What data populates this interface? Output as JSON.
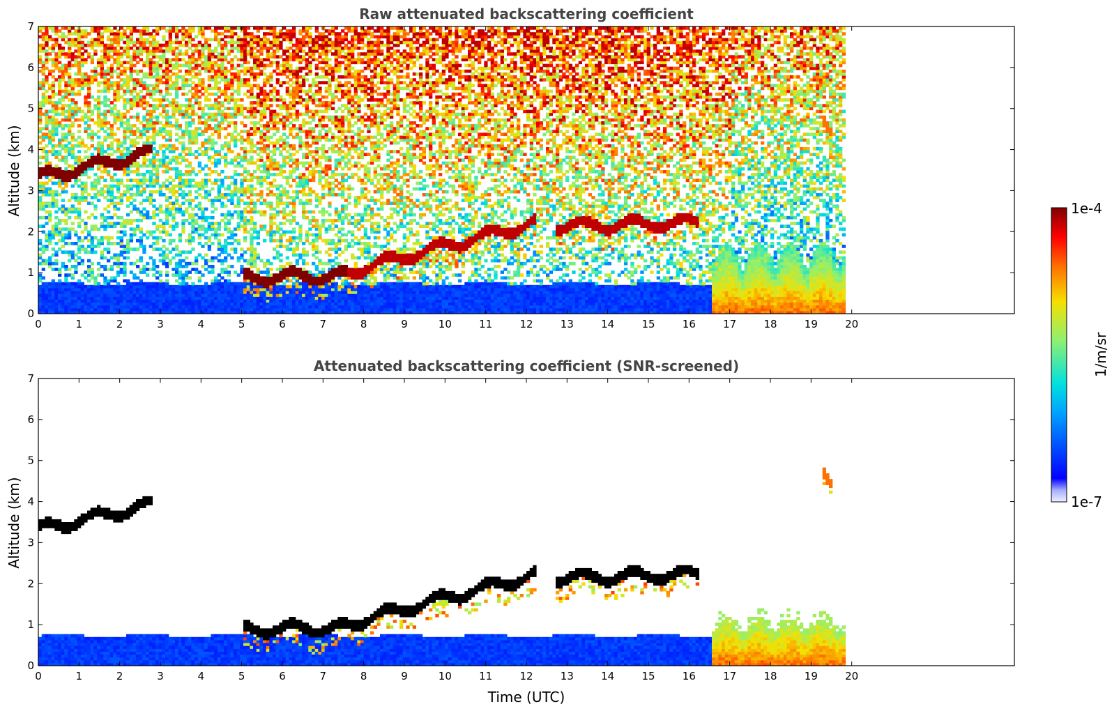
{
  "chart_data": [
    {
      "type": "heatmap",
      "title": "Raw attenuated backscattering coefficient",
      "xlabel": "",
      "ylabel": "Altitude (km)",
      "xlim": [
        0,
        24
      ],
      "ylim": [
        0,
        7
      ],
      "xticks": [
        "0",
        "1",
        "2",
        "3",
        "4",
        "5",
        "6",
        "7",
        "8",
        "9",
        "10",
        "11",
        "12",
        "13",
        "14",
        "15",
        "16",
        "17",
        "18",
        "19",
        "20"
      ],
      "yticks": [
        "0",
        "1",
        "2",
        "3",
        "4",
        "5",
        "6",
        "7"
      ],
      "data_end_time": 19.8,
      "features": [
        {
          "kind": "boundary_layer",
          "t_start": 0,
          "t_end": 19.8,
          "top": 0.7,
          "level": 0.15
        },
        {
          "kind": "cloud_layer",
          "t_start": 0,
          "t_end": 2.8,
          "alt_start": 3.3,
          "alt_end": 3.9,
          "level": 1.0
        },
        {
          "kind": "cloud_layer",
          "t_start": 5.0,
          "t_end": 7.6,
          "alt_start": 0.85,
          "alt_end": 0.9,
          "level": 1.0
        },
        {
          "kind": "cloud_layer",
          "t_start": 7.6,
          "t_end": 12.2,
          "alt_start": 1.0,
          "alt_end": 2.2,
          "level": 0.95
        },
        {
          "kind": "cloud_layer",
          "t_start": 12.7,
          "t_end": 16.2,
          "alt_start": 2.1,
          "alt_end": 2.2,
          "level": 0.95
        },
        {
          "kind": "aerosol_plume",
          "t_start": 16.5,
          "t_end": 19.8,
          "alt_start": 0,
          "alt_end": 1.7,
          "level": 0.65
        },
        {
          "kind": "cloud_layer",
          "t_start": 19.2,
          "t_end": 19.5,
          "alt_start": 4.6,
          "alt_end": 4.3,
          "level": 0.8
        }
      ]
    },
    {
      "type": "heatmap",
      "title": "Attenuated backscattering coefficient (SNR-screened)",
      "xlabel": "Time (UTC)",
      "ylabel": "Altitude (km)",
      "xlim": [
        0,
        24
      ],
      "ylim": [
        0,
        7
      ],
      "xticks": [
        "0",
        "1",
        "2",
        "3",
        "4",
        "5",
        "6",
        "7",
        "8",
        "9",
        "10",
        "11",
        "12",
        "13",
        "14",
        "15",
        "16",
        "17",
        "18",
        "19",
        "20"
      ],
      "yticks": [
        "0",
        "1",
        "2",
        "3",
        "4",
        "5",
        "6",
        "7"
      ],
      "data_end_time": 19.8,
      "screened": true,
      "saturated_color": "#000000"
    }
  ],
  "colorbar": {
    "label": "1/m/sr",
    "min_label": "1e-7",
    "max_label": "1e-4",
    "colormap": "jet"
  },
  "colors": {
    "title": "#444444",
    "axis": "#000000",
    "background": "#ffffff"
  }
}
